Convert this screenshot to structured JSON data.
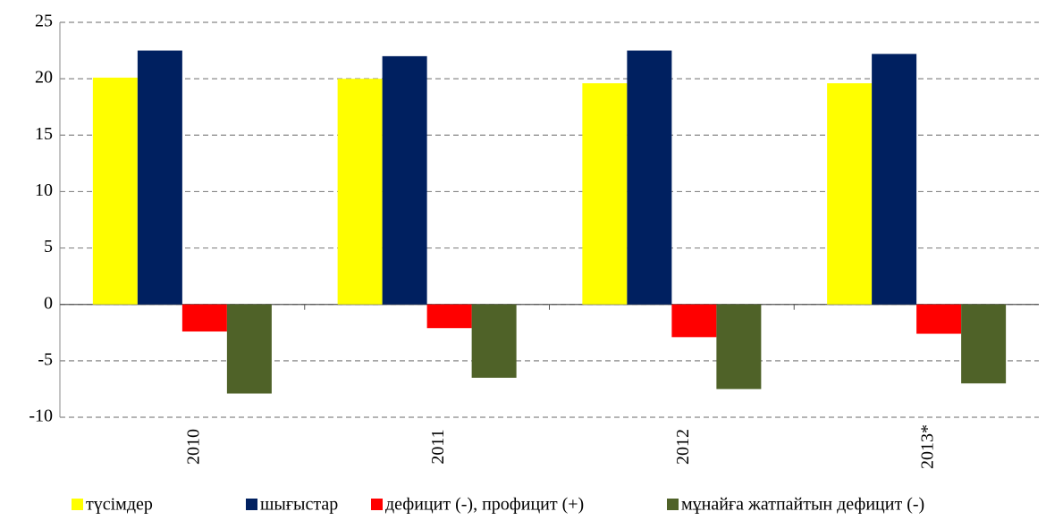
{
  "chart_data": {
    "type": "bar",
    "categories": [
      "2010",
      "2011",
      "2012",
      "2013*"
    ],
    "series": [
      {
        "name": "түсімдер",
        "color": "#ffff00",
        "values": [
          20.1,
          20.0,
          19.6,
          19.6
        ]
      },
      {
        "name": "шығыстар",
        "color": "#002060",
        "values": [
          22.5,
          22.0,
          22.5,
          22.2
        ]
      },
      {
        "name": "дефицит (-), профицит (+)",
        "color": "#ff0000",
        "values": [
          -2.4,
          -2.1,
          -2.9,
          -2.6
        ]
      },
      {
        "name": "мұнайға жатпайтын дефицит (-)",
        "color": "#4f6228",
        "values": [
          -7.9,
          -6.5,
          -7.5,
          -7.0
        ]
      }
    ],
    "ylim": [
      -10,
      25
    ],
    "yticks": [
      -10,
      -5,
      0,
      5,
      10,
      15,
      20,
      25
    ],
    "grid": true,
    "legend": "bottom"
  }
}
